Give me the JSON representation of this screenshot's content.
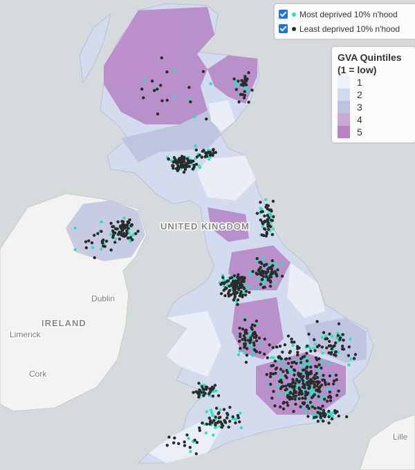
{
  "layers": [
    {
      "label": "Most deprived 10% n'hood",
      "color": "#2de0c0",
      "checked": true
    },
    {
      "label": "Least deprived 10% n'hood",
      "color": "#2b2b2b",
      "checked": true
    }
  ],
  "quintile_legend": {
    "title": "GVA Quintiles",
    "subtitle": "(1 = low)",
    "items": [
      {
        "label": "1",
        "color": "#eef2f9"
      },
      {
        "label": "2",
        "color": "#d3dcee"
      },
      {
        "label": "3",
        "color": "#bcc2df"
      },
      {
        "label": "4",
        "color": "#c9a9d6"
      },
      {
        "label": "5",
        "color": "#b683c4"
      }
    ]
  },
  "map_labels": [
    "IRELAND",
    "Dublin",
    "Limerick",
    "Cork",
    "UNITED KINGDOM",
    "Lille"
  ]
}
